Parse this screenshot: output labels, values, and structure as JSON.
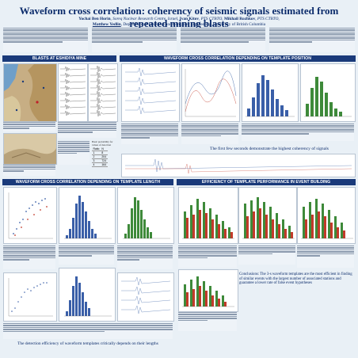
{
  "title": "Waveform cross correlation: coherency of seismic signals estimated from repeated mining blasts",
  "authors": {
    "a1": "Yochai Ben Horin",
    "a1_aff": ", Soreq Nuclear Research Centre, Israel,",
    "a2": "Ivan Kitov",
    "a2_aff": ", PTS CTBTO,",
    "a3": "Mikhail Rozhkov",
    "a3_aff": ", PTS CTBTO,",
    "a4": "Matthew Yedlin",
    "a4_aff": ", Department of Electrical and Computer Engineering, University of British Columbia"
  },
  "sections": {
    "s1": "BLASTS AT ESHIDIYA MINE",
    "s2": "WAVEFORM CROSS CORRELATION DEPENDING ON TEMPLATE POSITION",
    "s3": "WAVEFORM CROSS CORRELATION DEPENDING ON TEMPLATE LENGTH",
    "s4": "EFFICIENCY OF TEMPLATE PERFORMANCE IN EVENT BUILDING"
  },
  "table": {
    "header": "Basic probability for values of detection",
    "rows": [
      [
        "Ratio",
        "N"
      ],
      [
        "1",
        "8"
      ],
      [
        "2",
        "204"
      ],
      [
        "3",
        "724"
      ],
      [
        "4",
        "164"
      ]
    ]
  },
  "notes": {
    "center_mid": "The first few seconds demonstrate the highest coherency of signals",
    "conclusion": "Conclusions: The 3-s waveform templates are the most efficient in finding of similar events with the largest number of associated stations and guarantee a lower rate of false event hypotheses",
    "bottom": "The detection efficiency of waveform templates critically depends on their lengths"
  },
  "colors": {
    "header_bg": "#1a3a7a",
    "title": "#0b2b6b",
    "bar_green": "#3e8a3a",
    "bar_red": "#c23a2a",
    "bar_blue": "#3a5fa8"
  }
}
